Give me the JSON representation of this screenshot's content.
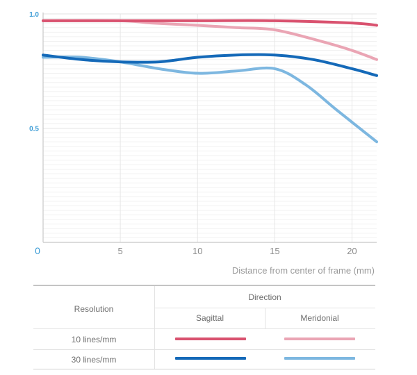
{
  "chart_data": {
    "type": "line",
    "xlabel": "Distance from center of frame (mm)",
    "ylabel": "",
    "xlim": [
      0,
      21.6
    ],
    "ylim": [
      0,
      1.0
    ],
    "x_ticks": [
      "0",
      "5",
      "10",
      "15",
      "20"
    ],
    "y_ticks": [
      "0.5",
      "1.0"
    ],
    "grid": true,
    "series": [
      {
        "name": "10 lines/mm Sagittal",
        "color": "#d9526f",
        "x": [
          0,
          5,
          10,
          15,
          20,
          21.6
        ],
        "y": [
          0.97,
          0.97,
          0.97,
          0.97,
          0.96,
          0.95
        ]
      },
      {
        "name": "10 lines/mm Meridonial",
        "color": "#eaa5b4",
        "x": [
          0,
          5,
          7,
          10,
          12.5,
          15,
          18,
          20,
          21.6
        ],
        "y": [
          0.97,
          0.97,
          0.96,
          0.95,
          0.94,
          0.93,
          0.88,
          0.84,
          0.8
        ]
      },
      {
        "name": "30 lines/mm Sagittal",
        "color": "#1469b8",
        "x": [
          0,
          2.5,
          5,
          7.5,
          10,
          12.5,
          15,
          17.5,
          20,
          21.6
        ],
        "y": [
          0.82,
          0.8,
          0.79,
          0.79,
          0.81,
          0.82,
          0.82,
          0.8,
          0.76,
          0.73
        ]
      },
      {
        "name": "30 lines/mm Meridonial",
        "color": "#7db7e0",
        "x": [
          0,
          2.5,
          5,
          7.5,
          10,
          12.5,
          15,
          17,
          19,
          21.6
        ],
        "y": [
          0.81,
          0.81,
          0.79,
          0.76,
          0.74,
          0.75,
          0.76,
          0.69,
          0.58,
          0.44
        ]
      }
    ]
  },
  "legend": {
    "direction_label": "Direction",
    "resolution_label": "Resolution",
    "columns": [
      "Sagittal",
      "Meridonial"
    ],
    "rows": [
      {
        "label": "10 lines/mm",
        "colors": [
          "#d9526f",
          "#eaa5b4"
        ]
      },
      {
        "label": "30 lines/mm",
        "colors": [
          "#1469b8",
          "#7db7e0"
        ]
      }
    ]
  }
}
